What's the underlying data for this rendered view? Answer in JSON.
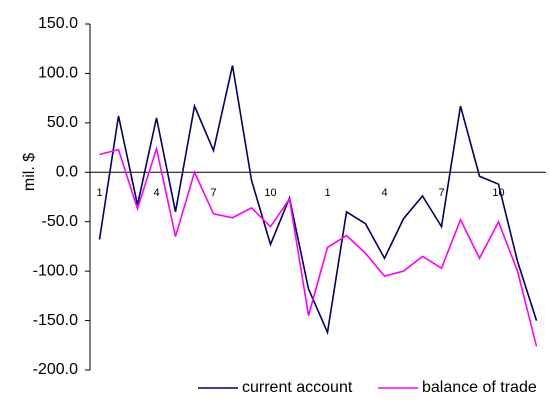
{
  "chart_data": {
    "type": "line",
    "y_label": "mil. $",
    "categories": [
      "1",
      null,
      null,
      "4",
      null,
      null,
      "7",
      null,
      null,
      "10",
      null,
      null,
      "1",
      null,
      null,
      "4",
      null,
      null,
      "7",
      null,
      null,
      "10",
      null,
      null
    ],
    "series": [
      {
        "name": "current account",
        "color": "#000066",
        "values": [
          -68,
          57,
          -33,
          55,
          -40,
          67,
          22,
          108,
          -8,
          -73,
          -26,
          -118,
          -162,
          -40,
          -52,
          -87,
          -47,
          -24,
          -55,
          67,
          -4,
          -12,
          -90,
          -150
        ]
      },
      {
        "name": "balance of trade",
        "color": "#ff00ff",
        "values": [
          18,
          23,
          -37,
          24,
          -65,
          0,
          -42,
          -46,
          -36,
          -55,
          -27,
          -145,
          -76,
          -64,
          -82,
          -105,
          -100,
          -85,
          -97,
          -48,
          -87,
          -50,
          -100,
          -176
        ]
      }
    ],
    "ylim": [
      -200,
      150
    ],
    "yticks": [
      {
        "value": -200,
        "label": "-200.0"
      },
      {
        "value": -150,
        "label": "-150.0"
      },
      {
        "value": -100,
        "label": "-100.0"
      },
      {
        "value": -50,
        "label": "-50.0"
      },
      {
        "value": 0,
        "label": "0.0"
      },
      {
        "value": 50,
        "label": "50.0"
      },
      {
        "value": 100,
        "label": "100.0"
      },
      {
        "value": 150,
        "label": "150.0"
      }
    ],
    "grid": false
  }
}
